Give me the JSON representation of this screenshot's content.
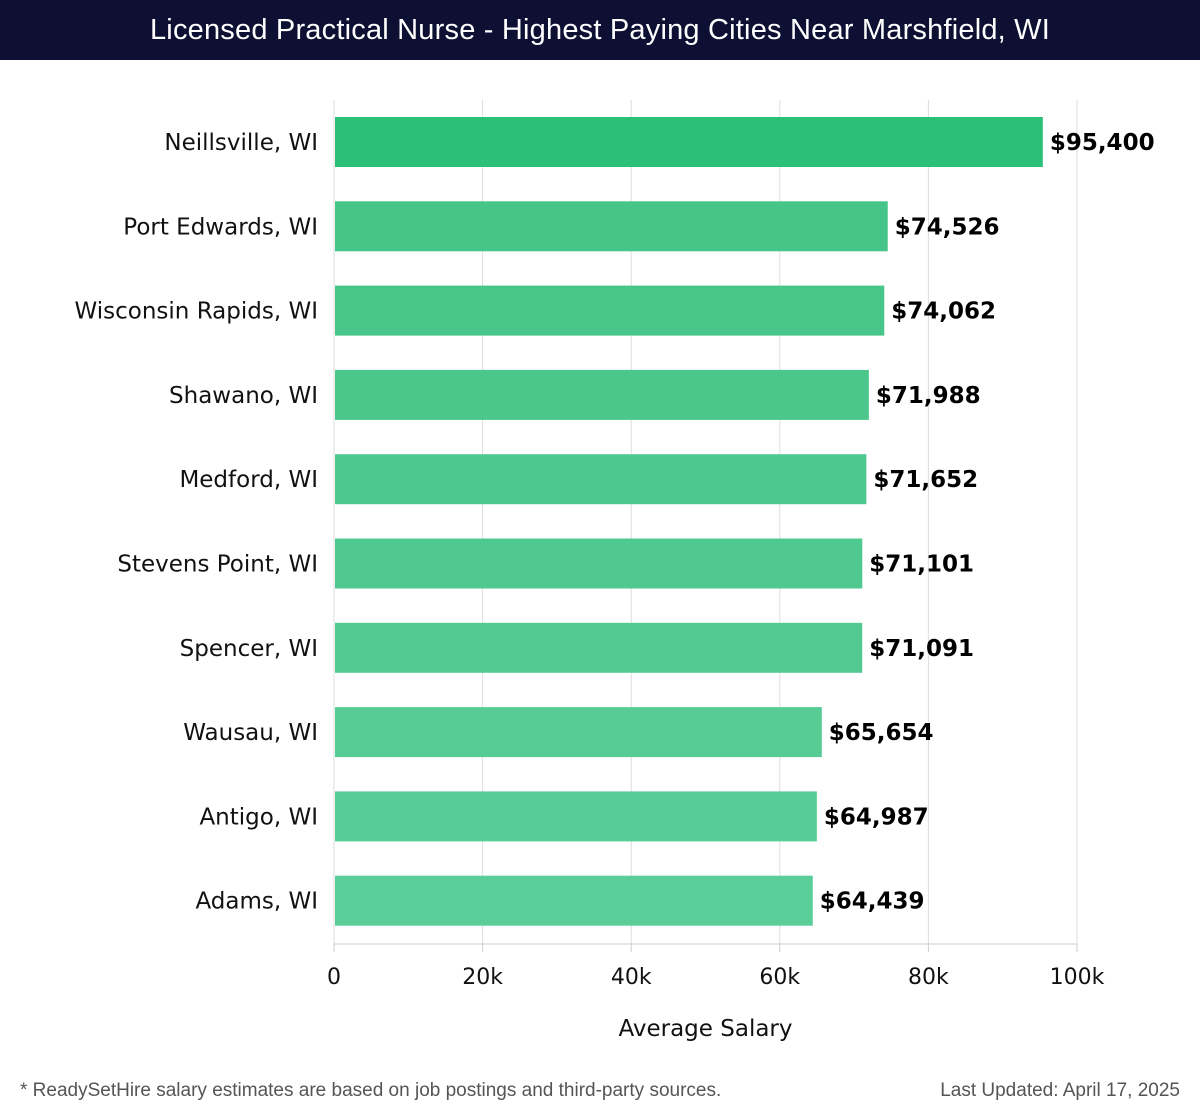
{
  "header": {
    "title": "Licensed Practical Nurse - Highest Paying Cities Near Marshfield, WI"
  },
  "chart_data": {
    "type": "bar",
    "orientation": "horizontal",
    "title": "Licensed Practical Nurse - Highest Paying Cities Near Marshfield, WI",
    "xlabel": "Average Salary",
    "ylabel": "",
    "xlim": [
      0,
      100000
    ],
    "x_ticks": [
      0,
      20000,
      40000,
      60000,
      80000,
      100000
    ],
    "x_tick_labels": [
      "0",
      "20k",
      "40k",
      "60k",
      "80k",
      "100k"
    ],
    "grid": true,
    "categories": [
      "Neillsville, WI",
      "Port Edwards, WI",
      "Wisconsin Rapids, WI",
      "Shawano, WI",
      "Medford, WI",
      "Stevens Point, WI",
      "Spencer, WI",
      "Wausau, WI",
      "Antigo, WI",
      "Adams, WI"
    ],
    "values": [
      95400,
      74526,
      74062,
      71988,
      71652,
      71101,
      71091,
      65654,
      64987,
      64439
    ],
    "value_labels": [
      "$95,400",
      "$74,526",
      "$74,062",
      "$71,988",
      "$71,652",
      "$71,101",
      "$71,091",
      "$65,654",
      "$64,987",
      "$64,439"
    ],
    "colors": {
      "top_bar": "#2bbf77",
      "bar_gradient_start": "#45c588",
      "bar_gradient_end": "#5bcd98",
      "grid": "#dddddd",
      "axis": "#cccccc"
    }
  },
  "footer": {
    "note": "* ReadySetHire salary estimates are based on job postings and third-party sources.",
    "updated": "Last Updated: April 17, 2025"
  }
}
